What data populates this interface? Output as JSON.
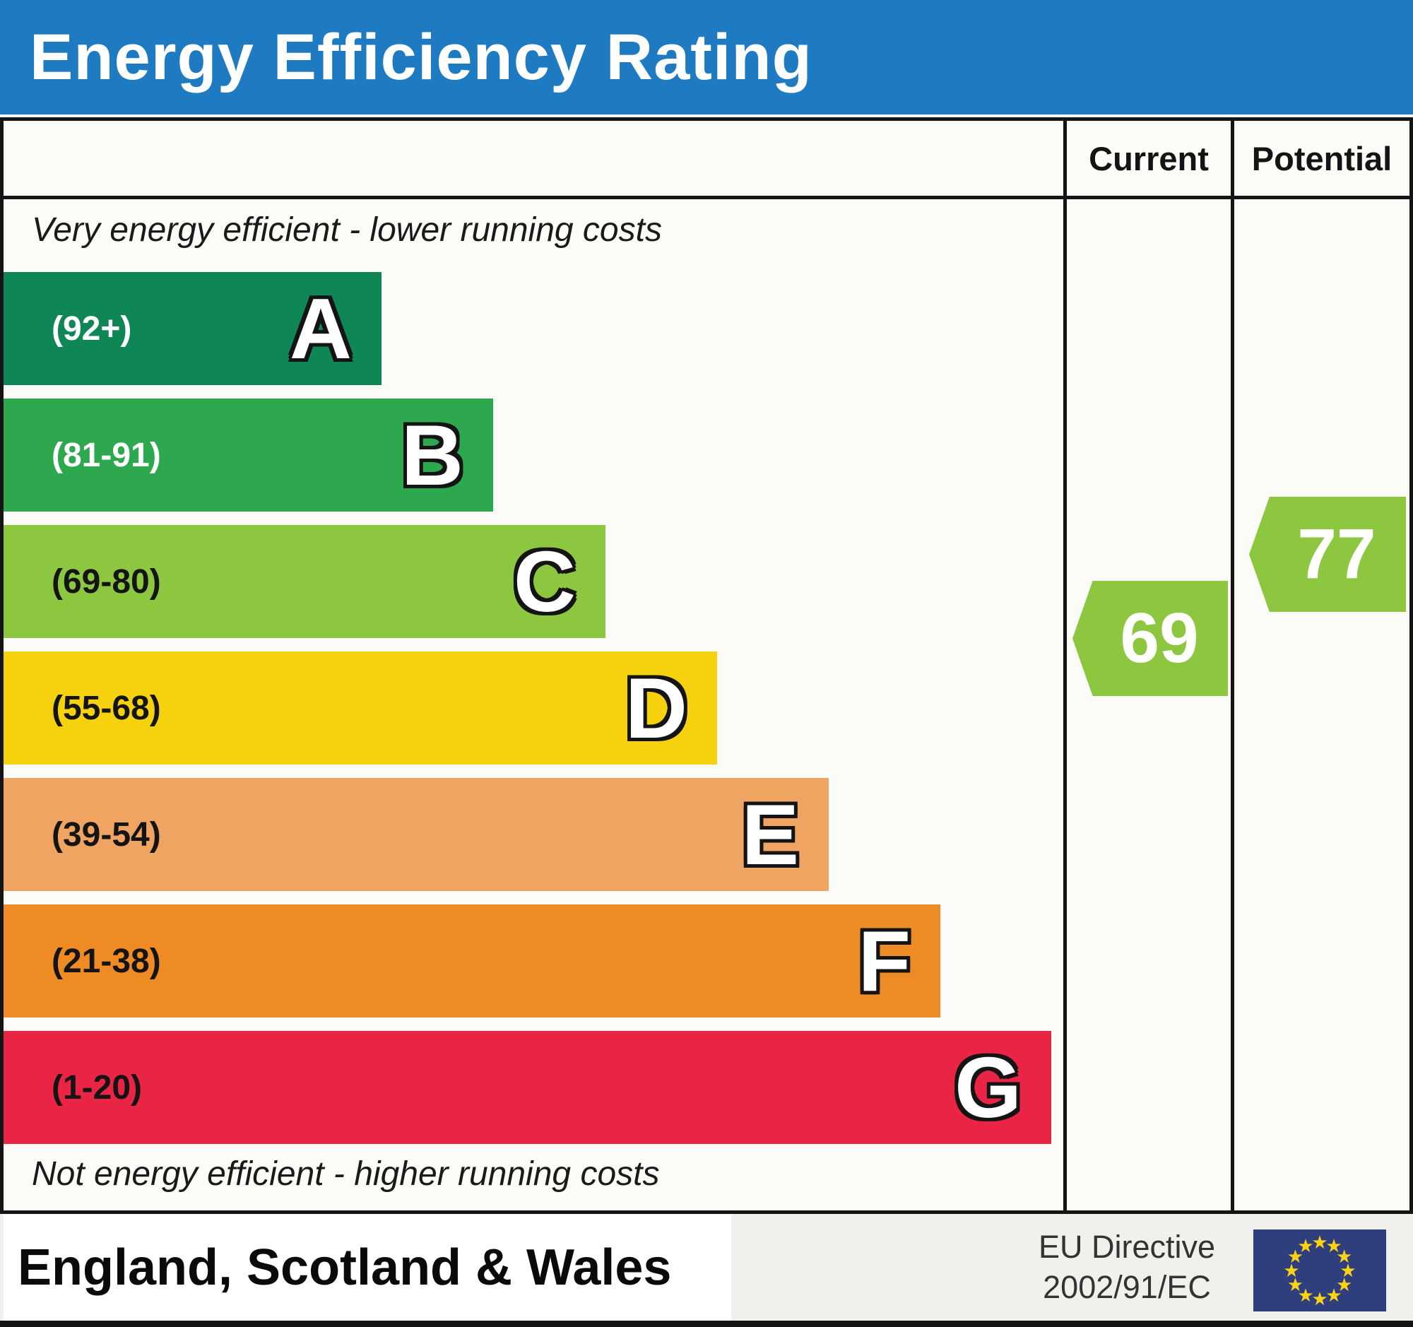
{
  "title": "Energy Efficiency Rating",
  "columns": {
    "current": "Current",
    "potential": "Potential"
  },
  "notes": {
    "top": "Very energy efficient - lower running costs",
    "bottom": "Not energy efficient - higher running costs"
  },
  "footer": {
    "region": "England, Scotland & Wales",
    "directive_line1": "EU Directive",
    "directive_line2": "2002/91/EC",
    "eu_flag_stars": 12
  },
  "colors": {
    "header_blue": "#1e7ac1",
    "arrow_green": "#8dc63f",
    "flag_navy": "#2f3f7e",
    "flag_star": "#fcd116"
  },
  "chart_data": {
    "type": "bar",
    "title": "Energy Efficiency Rating",
    "categories": [
      "A",
      "B",
      "C",
      "D",
      "E",
      "F",
      "G"
    ],
    "bands": [
      {
        "letter": "A",
        "range_label": "(92+)",
        "min": 92,
        "max": 100,
        "color": "#0e8656",
        "label_color": "#ffffff"
      },
      {
        "letter": "B",
        "range_label": "(81-91)",
        "min": 81,
        "max": 91,
        "color": "#2ea84e",
        "label_color": "#ffffff"
      },
      {
        "letter": "C",
        "range_label": "(69-80)",
        "min": 69,
        "max": 80,
        "color": "#8dc63f",
        "label_color": "#141414"
      },
      {
        "letter": "D",
        "range_label": "(55-68)",
        "min": 55,
        "max": 68,
        "color": "#f6d20e",
        "label_color": "#141414"
      },
      {
        "letter": "E",
        "range_label": "(39-54)",
        "min": 39,
        "max": 54,
        "color": "#efa561",
        "label_color": "#141414"
      },
      {
        "letter": "F",
        "range_label": "(21-38)",
        "min": 21,
        "max": 38,
        "color": "#ee8b25",
        "label_color": "#141414"
      },
      {
        "letter": "G",
        "range_label": "(1-20)",
        "min": 1,
        "max": 20,
        "color": "#e92444",
        "label_color": "#141414"
      }
    ],
    "series": [
      {
        "name": "Current",
        "value": 69,
        "band": "C"
      },
      {
        "name": "Potential",
        "value": 77,
        "band": "C"
      }
    ],
    "current": 69,
    "potential": 77,
    "legend_position": "none",
    "grid": false
  }
}
